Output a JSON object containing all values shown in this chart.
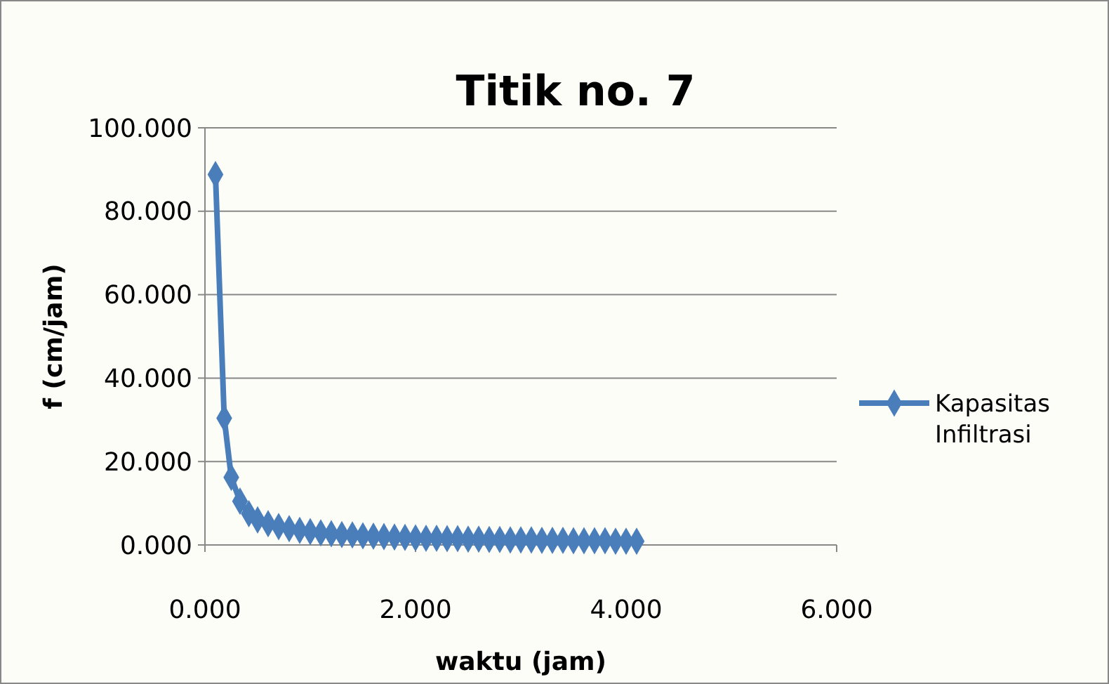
{
  "chart_data": {
    "type": "line",
    "title": "Titik no. 7",
    "xlabel": "waktu (jam)",
    "ylabel": "f (cm/jam)",
    "x": [
      0.1,
      0.183,
      0.25,
      0.333,
      0.417,
      0.5,
      0.6,
      0.7,
      0.8,
      0.9,
      1.0,
      1.1,
      1.2,
      1.3,
      1.4,
      1.5,
      1.6,
      1.7,
      1.8,
      1.9,
      2.0,
      2.1,
      2.2,
      2.3,
      2.4,
      2.5,
      2.6,
      2.7,
      2.8,
      2.9,
      3.0,
      3.1,
      3.2,
      3.3,
      3.4,
      3.5,
      3.6,
      3.7,
      3.8,
      3.9,
      4.0,
      4.1
    ],
    "series": [
      {
        "name": "Kapasitas Infiltrasi",
        "color": "#4a7ebb",
        "values": [
          88.8,
          30.4,
          16.2,
          10.5,
          7.5,
          6.0,
          5.1,
          4.4,
          3.9,
          3.5,
          3.2,
          2.9,
          2.7,
          2.5,
          2.4,
          2.2,
          2.1,
          2.0,
          1.9,
          1.8,
          1.7,
          1.6,
          1.6,
          1.5,
          1.5,
          1.4,
          1.4,
          1.3,
          1.3,
          1.2,
          1.2,
          1.2,
          1.1,
          1.1,
          1.1,
          1.0,
          1.0,
          1.0,
          1.0,
          0.9,
          0.9,
          0.9
        ]
      }
    ],
    "xlim": [
      0,
      6
    ],
    "xticks": [
      {
        "value": 0,
        "label": "0.000"
      },
      {
        "value": 2,
        "label": "2.000"
      },
      {
        "value": 4,
        "label": "4.000"
      },
      {
        "value": 6,
        "label": "6.000"
      }
    ],
    "ylim": [
      0,
      100
    ],
    "yticks": [
      {
        "value": 0,
        "label": "0.000"
      },
      {
        "value": 20,
        "label": "20.000"
      },
      {
        "value": 40,
        "label": "40.000"
      },
      {
        "value": 60,
        "label": "60.000"
      },
      {
        "value": 80,
        "label": "80.000"
      },
      {
        "value": 100,
        "label": "100.000"
      }
    ],
    "grid": "y",
    "legend": "right",
    "marker": "diamond",
    "line_style": "solid"
  }
}
